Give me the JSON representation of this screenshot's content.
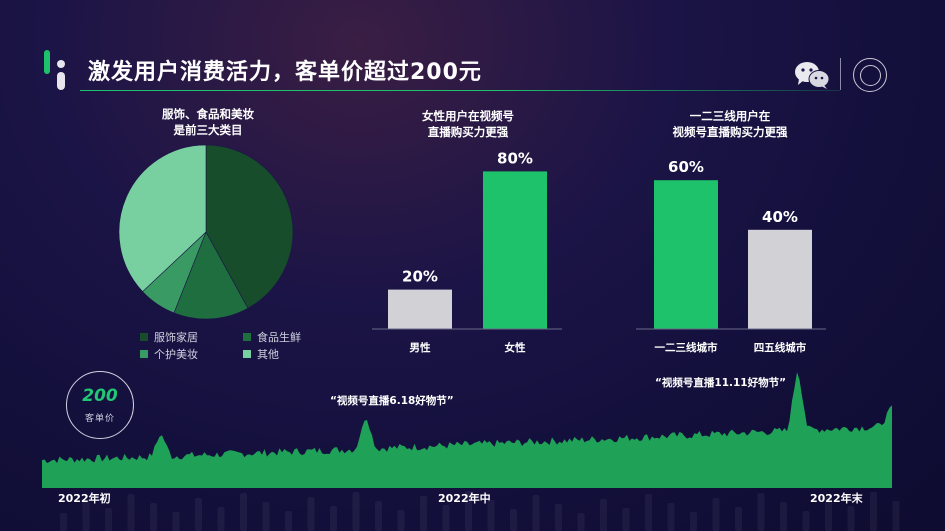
{
  "header": {
    "title": "激发用户消费活力，客单价超过200元",
    "brand_colors": {
      "green": "#1ec26a",
      "gray": "#d2d2d6"
    }
  },
  "chart_data": [
    {
      "type": "pie",
      "title": "服饰、食品和美妆\n是前三大类目",
      "title_lines": [
        "服饰、食品和美妆",
        "是前三大类目"
      ],
      "slices": [
        {
          "label": "服饰家居",
          "value": 42,
          "color": "#174d2b"
        },
        {
          "label": "食品生鲜",
          "value": 14,
          "color": "#1f6e3f"
        },
        {
          "label": "个护美妆",
          "value": 7,
          "color": "#3a9a63"
        },
        {
          "label": "其他",
          "value": 37,
          "color": "#78cfa0"
        }
      ],
      "legend": "bottom"
    },
    {
      "type": "bar",
      "title": "女性用户在视频号\n直播购买力更强",
      "title_lines": [
        "女性用户在视频号",
        "直播购买力更强"
      ],
      "categories": [
        "男性",
        "女性"
      ],
      "values": [
        20,
        80
      ],
      "value_labels": [
        "20%",
        "80%"
      ],
      "colors": [
        "#d2d2d6",
        "#1ec26a"
      ],
      "ylim": [
        0,
        100
      ]
    },
    {
      "type": "bar",
      "title": "一二三线用户在\n视频号直播购买力更强",
      "title_lines": [
        "一二三线用户在",
        "视频号直播购买力更强"
      ],
      "categories": [
        "一二三线城市",
        "四五线城市"
      ],
      "values": [
        60,
        40
      ],
      "value_labels": [
        "60%",
        "40%"
      ],
      "colors": [
        "#1ec26a",
        "#d2d2d6"
      ],
      "ylim": [
        0,
        100
      ]
    },
    {
      "type": "area",
      "x_ticks": [
        "2022年初",
        "2022年中",
        "2022年末"
      ],
      "annotations": [
        "“视频号直播6.18好物节”",
        "“视频号直播11.11好物节”"
      ],
      "peaks": [
        {
          "x": 0.14,
          "height": 55
        },
        {
          "x": 0.381,
          "height": 72
        },
        {
          "x": 0.889,
          "height": 120
        }
      ],
      "x_domain": [
        0,
        1
      ],
      "baseline_start": 28,
      "baseline_end": 62,
      "ylim": [
        0,
        125
      ],
      "color": "#1fa257"
    }
  ],
  "kpi": {
    "value": "200",
    "label": "客单价"
  }
}
